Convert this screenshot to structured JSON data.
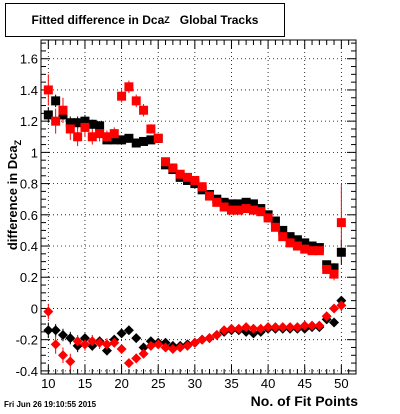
{
  "chart_data": {
    "type": "scatter",
    "title": {
      "main": "Fitted difference in Dca",
      "sub": "Z",
      "suffix": "Global Tracks"
    },
    "ylabel": {
      "main": "difference in Dca",
      "sub": "Z"
    },
    "xlabel": "No. of Fit Points",
    "xlim": [
      9,
      52
    ],
    "ylim": [
      -0.42,
      1.72
    ],
    "xticks": [
      10,
      15,
      20,
      25,
      30,
      35,
      40,
      45,
      50
    ],
    "yticks": [
      -0.4,
      -0.2,
      0,
      0.2,
      0.4,
      0.6,
      0.8,
      1,
      1.2,
      1.4,
      1.6
    ],
    "ytick_labels": [
      "-0.4",
      "-0.2",
      "0",
      "0.2",
      "0.4",
      "0.6",
      "0.8",
      "1",
      "1.2",
      "1.4",
      "1.6"
    ],
    "grid": true,
    "series": [
      {
        "marker": "square",
        "color": "#000000",
        "x": [
          10,
          11,
          12,
          13,
          14,
          15,
          16,
          17,
          18,
          19,
          20,
          21,
          22,
          23,
          24,
          25,
          26,
          27,
          28,
          29,
          30,
          31,
          32,
          33,
          34,
          35,
          36,
          37,
          38,
          39,
          40,
          41,
          42,
          43,
          44,
          45,
          46,
          47,
          48,
          49,
          50
        ],
        "y": [
          1.24,
          1.33,
          1.24,
          1.19,
          1.19,
          1.2,
          1.18,
          1.17,
          1.08,
          1.08,
          1.08,
          1.09,
          1.06,
          1.07,
          1.08,
          1.09,
          0.92,
          0.89,
          0.84,
          0.82,
          0.8,
          0.76,
          0.73,
          0.7,
          0.68,
          0.67,
          0.67,
          0.68,
          0.67,
          0.64,
          0.6,
          0.56,
          0.5,
          0.46,
          0.44,
          0.42,
          0.4,
          0.39,
          0.28,
          0.26,
          0.36
        ],
        "err": [
          0.05,
          0.04,
          0.05,
          0.04,
          0.04,
          0.04,
          0.03,
          0.03,
          0.02,
          0.02,
          0.02,
          0.02,
          0.02,
          0.02,
          0.02,
          0.02,
          0.01,
          0.01,
          0.01,
          0.01,
          0.01,
          0.01,
          0.01,
          0.01,
          0.01,
          0.01,
          0.01,
          0.01,
          0.01,
          0.01,
          0.01,
          0.01,
          0.01,
          0.01,
          0.01,
          0.01,
          0.01,
          0.01,
          0.02,
          0.03,
          0.08
        ]
      },
      {
        "marker": "square",
        "color": "#ff0000",
        "x": [
          10,
          11,
          12,
          13,
          14,
          15,
          16,
          17,
          18,
          19,
          20,
          21,
          22,
          23,
          24,
          25,
          26,
          27,
          28,
          29,
          30,
          31,
          32,
          33,
          34,
          35,
          36,
          37,
          38,
          39,
          40,
          41,
          42,
          43,
          44,
          45,
          46,
          47,
          48,
          49,
          50
        ],
        "y": [
          1.4,
          1.2,
          1.27,
          1.15,
          1.1,
          1.16,
          1.1,
          1.12,
          1.1,
          1.12,
          1.36,
          1.42,
          1.33,
          1.27,
          1.15,
          1.09,
          0.94,
          0.9,
          0.86,
          0.84,
          0.82,
          0.78,
          0.72,
          0.68,
          0.65,
          0.63,
          0.63,
          0.64,
          0.63,
          0.62,
          0.58,
          0.52,
          0.46,
          0.42,
          0.4,
          0.38,
          0.37,
          0.37,
          0.25,
          0.22,
          0.55
        ],
        "err": [
          0.1,
          0.08,
          0.08,
          0.07,
          0.06,
          0.06,
          0.05,
          0.05,
          0.04,
          0.04,
          0.04,
          0.04,
          0.04,
          0.04,
          0.03,
          0.03,
          0.02,
          0.02,
          0.01,
          0.01,
          0.01,
          0.01,
          0.01,
          0.01,
          0.01,
          0.01,
          0.01,
          0.01,
          0.01,
          0.01,
          0.01,
          0.01,
          0.01,
          0.01,
          0.01,
          0.01,
          0.01,
          0.01,
          0.03,
          0.04,
          0.24
        ]
      },
      {
        "marker": "diamond",
        "color": "#000000",
        "x": [
          10,
          11,
          12,
          13,
          14,
          15,
          16,
          17,
          18,
          19,
          20,
          21,
          22,
          23,
          24,
          25,
          26,
          27,
          28,
          29,
          30,
          31,
          32,
          33,
          34,
          35,
          36,
          37,
          38,
          39,
          40,
          41,
          42,
          43,
          44,
          45,
          46,
          47,
          48,
          49,
          50
        ],
        "y": [
          -0.14,
          -0.14,
          -0.17,
          -0.19,
          -0.24,
          -0.19,
          -0.24,
          -0.21,
          -0.27,
          -0.2,
          -0.16,
          -0.14,
          -0.19,
          -0.25,
          -0.21,
          -0.22,
          -0.22,
          -0.24,
          -0.24,
          -0.23,
          -0.22,
          -0.2,
          -0.19,
          -0.17,
          -0.15,
          -0.14,
          -0.14,
          -0.15,
          -0.16,
          -0.15,
          -0.13,
          -0.13,
          -0.13,
          -0.13,
          -0.13,
          -0.13,
          -0.12,
          -0.12,
          -0.07,
          -0.09,
          0.05
        ],
        "err": [
          0.05,
          0.04,
          0.04,
          0.04,
          0.04,
          0.03,
          0.03,
          0.03,
          0.03,
          0.02,
          0.02,
          0.02,
          0.02,
          0.02,
          0.02,
          0.02,
          0.01,
          0.01,
          0.01,
          0.01,
          0.01,
          0.01,
          0.01,
          0.01,
          0.01,
          0.01,
          0.01,
          0.01,
          0.01,
          0.01,
          0.01,
          0.01,
          0.01,
          0.01,
          0.01,
          0.01,
          0.01,
          0.01,
          0.01,
          0.01,
          0.02
        ]
      },
      {
        "marker": "diamond",
        "color": "#ff0000",
        "x": [
          10,
          11,
          12,
          13,
          14,
          15,
          16,
          17,
          18,
          19,
          20,
          21,
          22,
          23,
          24,
          25,
          26,
          27,
          28,
          29,
          30,
          31,
          32,
          33,
          34,
          35,
          36,
          37,
          38,
          39,
          40,
          41,
          42,
          43,
          44,
          45,
          46,
          47,
          48,
          49,
          50
        ],
        "y": [
          -0.02,
          -0.23,
          -0.3,
          -0.34,
          -0.21,
          -0.23,
          -0.21,
          -0.22,
          -0.23,
          -0.22,
          -0.26,
          -0.35,
          -0.32,
          -0.29,
          -0.24,
          -0.23,
          -0.25,
          -0.26,
          -0.25,
          -0.24,
          -0.22,
          -0.2,
          -0.19,
          -0.17,
          -0.14,
          -0.13,
          -0.13,
          -0.12,
          -0.13,
          -0.13,
          -0.12,
          -0.12,
          -0.12,
          -0.12,
          -0.12,
          -0.11,
          -0.11,
          -0.11,
          -0.05,
          0,
          0.02
        ],
        "err": [
          0.05,
          0.06,
          0.05,
          0.05,
          0.04,
          0.04,
          0.04,
          0.04,
          0.04,
          0.03,
          0.03,
          0.03,
          0.03,
          0.02,
          0.02,
          0.02,
          0.02,
          0.02,
          0.01,
          0.01,
          0.01,
          0.01,
          0.01,
          0.01,
          0.01,
          0.01,
          0.01,
          0.01,
          0.01,
          0.01,
          0.01,
          0.01,
          0.01,
          0.01,
          0.01,
          0.01,
          0.01,
          0.01,
          0.02,
          0.02,
          0.04
        ]
      }
    ]
  },
  "footer_text": "Fri Jun 26 19:10:55 2015"
}
